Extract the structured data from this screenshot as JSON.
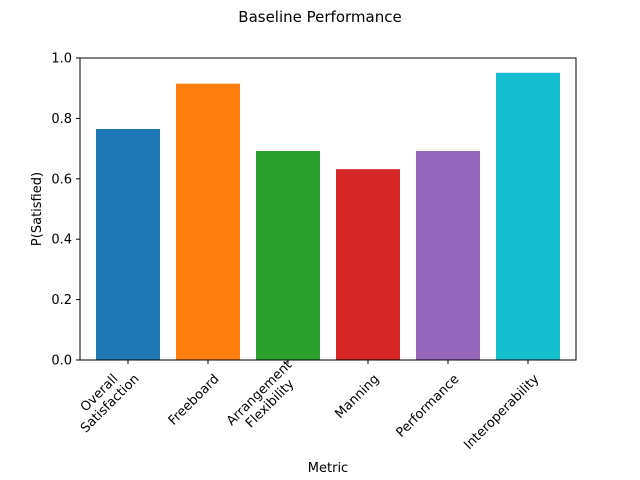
{
  "chart_data": {
    "type": "bar",
    "title": "Baseline Performance",
    "xlabel": "Metric",
    "ylabel": "P(Satisfied)",
    "categories": [
      [
        "Overall",
        "Satisfaction"
      ],
      [
        "Freeboard"
      ],
      [
        "Arrangement",
        "Flexibility"
      ],
      [
        "Manning"
      ],
      [
        "Performance"
      ],
      [
        "Interoperability"
      ]
    ],
    "values": [
      0.765,
      0.915,
      0.692,
      0.632,
      0.692,
      0.951
    ],
    "colors": [
      "#1f77b4",
      "#ff7f0e",
      "#2ca02c",
      "#d62728",
      "#9467bd",
      "#17becf"
    ],
    "ylim": [
      0,
      1.0
    ],
    "yticks": [
      "0.0",
      "0.2",
      "0.4",
      "0.6",
      "0.8",
      "1.0"
    ],
    "grid": false,
    "legend": "none"
  }
}
